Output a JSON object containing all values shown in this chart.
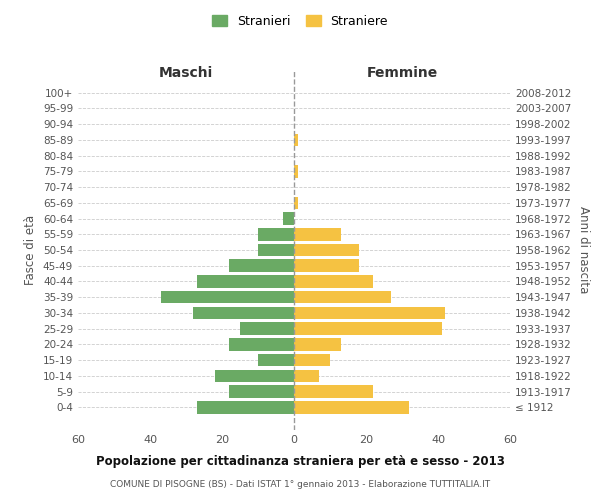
{
  "age_groups": [
    "100+",
    "95-99",
    "90-94",
    "85-89",
    "80-84",
    "75-79",
    "70-74",
    "65-69",
    "60-64",
    "55-59",
    "50-54",
    "45-49",
    "40-44",
    "35-39",
    "30-34",
    "25-29",
    "20-24",
    "15-19",
    "10-14",
    "5-9",
    "0-4"
  ],
  "birth_years": [
    "≤ 1912",
    "1913-1917",
    "1918-1922",
    "1923-1927",
    "1928-1932",
    "1933-1937",
    "1938-1942",
    "1943-1947",
    "1948-1952",
    "1953-1957",
    "1958-1962",
    "1963-1967",
    "1968-1972",
    "1973-1977",
    "1978-1982",
    "1983-1987",
    "1988-1992",
    "1993-1997",
    "1998-2002",
    "2003-2007",
    "2008-2012"
  ],
  "males": [
    0,
    0,
    0,
    0,
    0,
    0,
    0,
    0,
    3,
    10,
    10,
    18,
    27,
    37,
    28,
    15,
    18,
    10,
    22,
    18,
    27
  ],
  "females": [
    0,
    0,
    0,
    1,
    0,
    1,
    0,
    1,
    0,
    13,
    18,
    18,
    22,
    27,
    42,
    41,
    13,
    10,
    7,
    22,
    32
  ],
  "male_color": "#6aaa64",
  "female_color": "#f5c242",
  "title": "Popolazione per cittadinanza straniera per età e sesso - 2013",
  "subtitle": "COMUNE DI PISOGNE (BS) - Dati ISTAT 1° gennaio 2013 - Elaborazione TUTTITALIA.IT",
  "male_label": "Stranieri",
  "female_label": "Straniere",
  "maschi_label": "Maschi",
  "femmine_label": "Femmine",
  "eta_label": "Fasce di età",
  "anni_label": "Anni di nascita",
  "xlim": 60,
  "background_color": "#ffffff",
  "grid_color": "#cccccc"
}
